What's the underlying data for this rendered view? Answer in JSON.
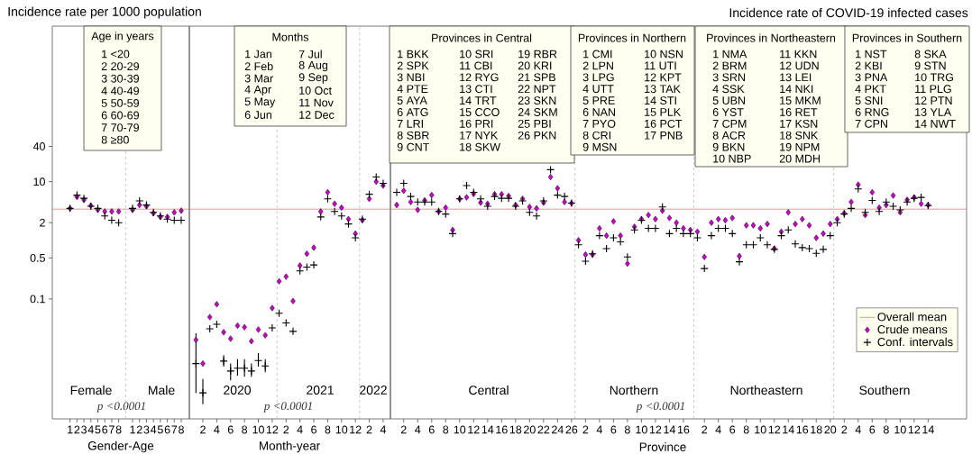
{
  "chart_data": [
    {
      "type": "scatter",
      "ylabel": "Incidence rate per 1000 population",
      "xlabel": "Gender-Age",
      "categories": [
        "1",
        "2",
        "3",
        "4",
        "5",
        "6",
        "7",
        "8",
        null,
        "1",
        "2",
        "3",
        "4",
        "5",
        "6",
        "7",
        "8"
      ],
      "series": [
        {
          "color": "#cc00cc",
          "marker": "diamond",
          "values": [
            3.5,
            5.5,
            4.9,
            3.9,
            3.3,
            3.1,
            3.1,
            3.1,
            null,
            3.3,
            4.0,
            3.8,
            2.9,
            2.5,
            2.5,
            3.0,
            3.2
          ]
        },
        {
          "color": "#000000",
          "marker": "cross",
          "values": [
            3.5,
            5.9,
            5.2,
            3.8,
            3.5,
            2.6,
            2.2,
            2.0,
            null,
            3.5,
            4.7,
            4.0,
            3.0,
            2.6,
            2.3,
            2.2,
            2.2
          ]
        }
      ],
      "log": "y",
      "ylim": [
        0.0009,
        4500
      ],
      "yticks": [
        0.1,
        0.5,
        2,
        10,
        40
      ],
      "ref_lines": [
        {
          "axis": "y",
          "value": 3.4,
          "color": "#ff7070"
        }
      ],
      "annotations": [
        "Female",
        "Male",
        "p <0.0001",
        "Age in years",
        "1  <20",
        "2  20-29",
        "3  30-39",
        "4  40-49",
        "5  50-59",
        "6  60-69",
        "7  70-79",
        "8  ≥80"
      ]
    },
    {
      "type": "scatter",
      "xlabel": "Month-year",
      "categories": [
        null,
        "2",
        null,
        "4",
        null,
        "6",
        null,
        "8",
        null,
        "10",
        null,
        "12",
        null,
        "2",
        null,
        "4",
        null,
        "6",
        null,
        "8",
        null,
        "10",
        null,
        "12",
        null,
        "2",
        null,
        "4"
      ],
      "series": [
        {
          "color": "#cc00cc",
          "marker": "diamond",
          "values": [
            0.02,
            0.0079,
            0.049,
            0.081,
            0.027,
            0.021,
            0.035,
            0.033,
            0.019,
            0.03,
            0.024,
            0.07,
            0.2,
            0.24,
            0.092,
            0.37,
            0.59,
            0.75,
            3.1,
            6.6,
            4.2,
            3.6,
            2.3,
            1.3,
            2.2,
            5.1,
            10,
            8.6
          ]
        },
        {
          "color": "#000000",
          "marker": "cross",
          "values": [
            0.0079,
            0.0025,
            0.031,
            0.037,
            0.0087,
            0.0059,
            0.0066,
            0.0066,
            0.0059,
            0.0089,
            0.0072,
            0.032,
            0.057,
            0.039,
            0.028,
            0.3,
            0.35,
            0.38,
            2.5,
            5.1,
            3.1,
            2.6,
            1.9,
            1.1,
            2.3,
            6.1,
            12,
            9.4
          ],
          "errors": [
            [
              0.0025,
              0.026
            ],
            [
              0.0016,
              0.0043
            ],
            null,
            null,
            [
              0.007,
              0.011
            ],
            [
              0.0041,
              0.0079
            ],
            [
              0.0049,
              0.0094
            ],
            [
              0.0047,
              0.0094
            ],
            [
              0.0047,
              0.0079
            ],
            [
              0.007,
              0.012
            ],
            [
              0.0056,
              0.0094
            ],
            null,
            null,
            null,
            null,
            null,
            null,
            null,
            null,
            null,
            null,
            null,
            null,
            null,
            null,
            null,
            null,
            null
          ]
        }
      ],
      "log": "y",
      "ylim": [
        0.0009,
        4500
      ],
      "tick_labels": "x",
      "ref_lines": [
        {
          "axis": "y",
          "value": 3.4,
          "color": "#ff7070"
        }
      ],
      "annotations": [
        "2020",
        "2021",
        "2022",
        "p <0.0001",
        "Months",
        "1 Jan",
        "2 Feb",
        "3 Mar",
        "4 Apr",
        "5 May",
        "6 Jun",
        "7 Jul",
        "8 Aug",
        "9 Sep",
        "10 Oct",
        "11 Nov",
        "12 Dec"
      ]
    },
    {
      "type": "scatter",
      "title": "Incidence rate of COVID-19 infected cases",
      "xlabel": "Province",
      "categories": [
        null,
        "2",
        null,
        "4",
        null,
        "6",
        null,
        "8",
        null,
        "10",
        null,
        "12",
        null,
        "14",
        null,
        "16",
        null,
        "18",
        null,
        "20",
        null,
        "22",
        null,
        "24",
        null,
        "26",
        null,
        "2",
        null,
        "4",
        null,
        "6",
        null,
        "8",
        null,
        "10",
        null,
        "12",
        null,
        "14",
        null,
        "16",
        null,
        null,
        "2",
        null,
        "4",
        null,
        "6",
        null,
        "8",
        null,
        "10",
        null,
        "12",
        null,
        "14",
        null,
        "16",
        null,
        "18",
        null,
        "20",
        null,
        "2",
        null,
        "4",
        null,
        "6",
        null,
        "8",
        null,
        "10",
        null,
        "12",
        null,
        "14"
      ],
      "series": [
        {
          "name": "Crude means",
          "color": "#cc00cc",
          "marker": "diamond",
          "values": [
            4.0,
            7.0,
            4.5,
            3.3,
            4.8,
            5.9,
            3.1,
            3.6,
            1.5,
            5.1,
            5.4,
            6.2,
            4.4,
            4.2,
            6.1,
            6.1,
            5.7,
            4.0,
            5.1,
            3.7,
            3.5,
            4.4,
            12,
            7.7,
            4.5,
            4.3,
            1.0,
            0.57,
            0.57,
            1.6,
            1.2,
            2.1,
            1.2,
            0.4,
            1.7,
            2.3,
            2.7,
            2.3,
            3.2,
            2.4,
            2.0,
            1.6,
            1.5,
            1.4,
            0.52,
            2.0,
            2.3,
            2.2,
            2.4,
            0.54,
            1.8,
            1.8,
            1.6,
            1.9,
            0.72,
            1.4,
            3.0,
            1.9,
            2.3,
            1.8,
            1.1,
            1.3,
            1.9,
            2.3,
            2.9,
            4.5,
            8.9,
            2.7,
            6.6,
            3.6,
            4.0,
            5.8,
            3.0,
            4.9,
            5.4,
            4.2,
            4.0
          ]
        },
        {
          "name": "Conf. intervals",
          "color": "#000000",
          "marker": "cross",
          "values": [
            6.6,
            9.4,
            5.6,
            4.5,
            4.5,
            4.5,
            3.1,
            2.8,
            1.3,
            5.1,
            8.6,
            6.6,
            5.1,
            3.8,
            5.6,
            5.2,
            5.2,
            3.8,
            4.7,
            3.0,
            2.6,
            4.7,
            16,
            5.9,
            5.6,
            4.3,
            0.84,
            0.44,
            0.59,
            1.2,
            0.72,
            1.1,
            0.94,
            0.52,
            1.5,
            2.2,
            1.6,
            1.6,
            3.7,
            1.3,
            1.6,
            1.3,
            1.3,
            1.1,
            0.33,
            1.2,
            1.6,
            1.6,
            1.3,
            0.43,
            0.84,
            0.84,
            1.1,
            0.84,
            0.7,
            1.2,
            1.5,
            0.87,
            0.75,
            0.72,
            0.6,
            0.7,
            1.2,
            2.0,
            2.8,
            3.5,
            7.5,
            3.0,
            4.8,
            3.1,
            4.5,
            3.8,
            3.3,
            4.5,
            5.2,
            5.4,
            3.9
          ]
        }
      ],
      "log": "y",
      "ylim": [
        0.0009,
        4500
      ],
      "tick_labels": "x",
      "legend": "bottom right",
      "ref_lines": [
        {
          "axis": "y",
          "value": 3.4,
          "color": "#ff7070",
          "label": "Overall mean"
        }
      ],
      "annotations": [
        "Central",
        "Northern",
        "Northeastern",
        "Southern",
        "p <0.0001",
        "Provinces in Central",
        "1 BKK",
        "2 SPK",
        "3 NBI",
        "4 PTE",
        "5 AYA",
        "6 ATG",
        "7 LRI",
        "8 SBR",
        "9 CNT",
        "10 SRI",
        "11 CBI",
        "12 RYG",
        "13 CTI",
        "14 TRT",
        "15 CCO",
        "16 PRI",
        "17 NYK",
        "18 SKW",
        "19 RBR",
        "20 KRI",
        "21 SPB",
        "22 NPT",
        "23 SKN",
        "24 SKM",
        "25 PBI",
        "26 PKN",
        "Provinces in Northern",
        "1 CMI",
        "2 LPN",
        "3 LPG",
        "4 UTT",
        "5 PRE",
        "6 NAN",
        "7 PYO",
        "8 CRI",
        "9 MSN",
        "10 NSN",
        "11 UTI",
        "12 KPT",
        "13 TAK",
        "14 STI",
        "15 PLK",
        "16 PCT",
        "17 PNB",
        "Provinces in Northeastern",
        "1 NMA",
        "2 BRM",
        "3 SRN",
        "4 SSK",
        "5 UBN",
        "6 YST",
        "7 CPM",
        "8 ACR",
        "9 BKN",
        "10 NBP",
        "11 KKN",
        "12 UDN",
        "13 LEI",
        "14 NKI",
        "15 MKM",
        "16 RET",
        "17 KSN",
        "18 SNK",
        "19 NPM",
        "20 MDH",
        "Provinces in Southern",
        "1 NST",
        "2 KBI",
        "3 PNA",
        "4 PKT",
        "5 SNI",
        "6 RNG",
        "7 CPN",
        "8 SKA",
        "9 STN",
        "10 TRG",
        "11 PLG",
        "12 PTN",
        "13 YLA",
        "14 NWT"
      ]
    }
  ]
}
